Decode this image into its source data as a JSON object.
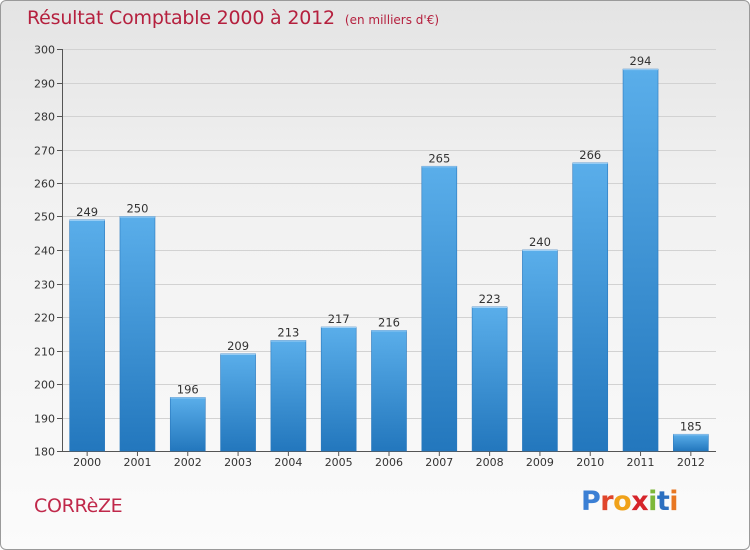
{
  "chart_data": {
    "type": "bar",
    "title": "Résultat Comptable 2000 à 2012",
    "subtitle": "(en milliers d'€)",
    "xlabel": "",
    "ylabel": "",
    "categories": [
      "2000",
      "2001",
      "2002",
      "2003",
      "2004",
      "2005",
      "2006",
      "2007",
      "2008",
      "2009",
      "2010",
      "2011",
      "2012"
    ],
    "values": [
      249,
      250,
      196,
      209,
      213,
      217,
      216,
      265,
      223,
      240,
      266,
      294,
      185
    ],
    "ylim": [
      180,
      300
    ],
    "yticks": [
      180,
      190,
      200,
      210,
      220,
      230,
      240,
      250,
      260,
      270,
      280,
      290,
      300
    ],
    "grid": true,
    "bar_color": "#3d8fd6",
    "data_labels": true
  },
  "footer": {
    "region": "CORRèZE",
    "brand": "Proxiti",
    "brand_colors": [
      "#3b7fd4",
      "#e0452b",
      "#f0a21a",
      "#d6242a",
      "#7db83a",
      "#2b6fc0",
      "#e87722"
    ]
  }
}
